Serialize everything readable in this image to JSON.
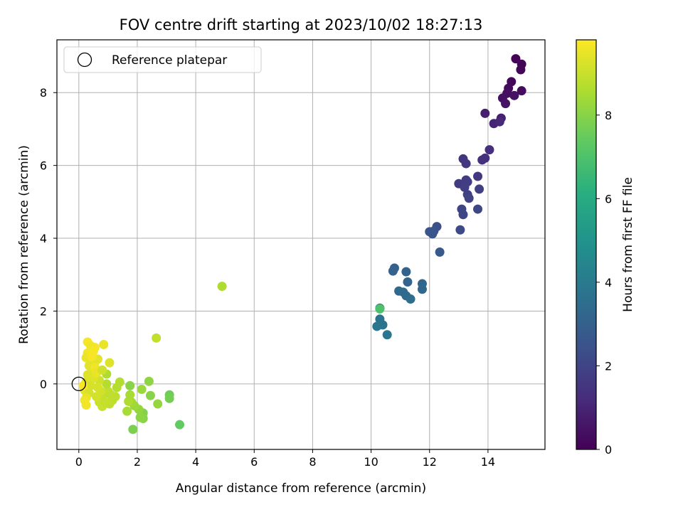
{
  "chart_data": {
    "type": "scatter",
    "title": "FOV centre drift starting at 2023/10/02 18:27:13",
    "xlabel": "Angular distance from reference (arcmin)",
    "ylabel": "Rotation from reference (arcmin)",
    "colorbar_label": "Hours from first FF file",
    "xlim": [
      -0.75,
      15.95
    ],
    "ylim": [
      -1.8,
      9.45
    ],
    "clim": [
      0,
      9.8
    ],
    "xticks": [
      "0",
      "2",
      "4",
      "6",
      "8",
      "10",
      "12",
      "14"
    ],
    "yticks": [
      "0",
      "2",
      "4",
      "6",
      "8"
    ],
    "cticks": [
      "0",
      "2",
      "4",
      "6",
      "8"
    ],
    "grid": true,
    "legend": {
      "position": "top-left",
      "entries": [
        "Reference platepar"
      ]
    },
    "reference_point": {
      "x": 0,
      "y": 0
    },
    "points": [
      {
        "x": 14.95,
        "y": 8.93,
        "h": 0.05
      },
      {
        "x": 15.15,
        "y": 8.78,
        "h": 0.1
      },
      {
        "x": 15.12,
        "y": 8.63,
        "h": 0.15
      },
      {
        "x": 14.8,
        "y": 8.3,
        "h": 0.2
      },
      {
        "x": 14.7,
        "y": 8.12,
        "h": 0.25
      },
      {
        "x": 15.15,
        "y": 8.05,
        "h": 0.3
      },
      {
        "x": 14.65,
        "y": 7.98,
        "h": 0.35
      },
      {
        "x": 14.5,
        "y": 7.85,
        "h": 0.4
      },
      {
        "x": 14.9,
        "y": 7.92,
        "h": 0.45
      },
      {
        "x": 14.6,
        "y": 7.7,
        "h": 0.5
      },
      {
        "x": 13.9,
        "y": 7.43,
        "h": 0.8
      },
      {
        "x": 14.45,
        "y": 7.3,
        "h": 0.9
      },
      {
        "x": 14.2,
        "y": 7.15,
        "h": 1.0
      },
      {
        "x": 14.4,
        "y": 7.2,
        "h": 1.1
      },
      {
        "x": 14.05,
        "y": 6.43,
        "h": 1.3
      },
      {
        "x": 13.9,
        "y": 6.2,
        "h": 1.35
      },
      {
        "x": 13.8,
        "y": 6.15,
        "h": 1.4
      },
      {
        "x": 13.15,
        "y": 6.18,
        "h": 1.5
      },
      {
        "x": 13.25,
        "y": 6.05,
        "h": 1.55
      },
      {
        "x": 13.65,
        "y": 5.7,
        "h": 1.6
      },
      {
        "x": 13.25,
        "y": 5.6,
        "h": 1.65
      },
      {
        "x": 13.0,
        "y": 5.5,
        "h": 1.7
      },
      {
        "x": 13.3,
        "y": 5.55,
        "h": 1.75
      },
      {
        "x": 13.2,
        "y": 5.4,
        "h": 1.8
      },
      {
        "x": 13.7,
        "y": 5.35,
        "h": 1.85
      },
      {
        "x": 13.3,
        "y": 5.2,
        "h": 1.9
      },
      {
        "x": 13.35,
        "y": 5.1,
        "h": 1.95
      },
      {
        "x": 13.1,
        "y": 4.8,
        "h": 2.0
      },
      {
        "x": 13.65,
        "y": 4.8,
        "h": 2.05
      },
      {
        "x": 13.15,
        "y": 4.65,
        "h": 2.1
      },
      {
        "x": 13.05,
        "y": 4.23,
        "h": 2.2
      },
      {
        "x": 12.25,
        "y": 4.32,
        "h": 2.4
      },
      {
        "x": 12.15,
        "y": 4.2,
        "h": 2.5
      },
      {
        "x": 12.0,
        "y": 4.18,
        "h": 2.55
      },
      {
        "x": 12.1,
        "y": 4.12,
        "h": 2.6
      },
      {
        "x": 12.35,
        "y": 3.62,
        "h": 2.7
      },
      {
        "x": 10.8,
        "y": 3.18,
        "h": 3.0
      },
      {
        "x": 10.75,
        "y": 3.1,
        "h": 3.05
      },
      {
        "x": 11.2,
        "y": 3.08,
        "h": 3.1
      },
      {
        "x": 11.25,
        "y": 2.8,
        "h": 3.15
      },
      {
        "x": 11.75,
        "y": 2.75,
        "h": 3.2
      },
      {
        "x": 11.75,
        "y": 2.6,
        "h": 3.25
      },
      {
        "x": 10.95,
        "y": 2.55,
        "h": 3.3
      },
      {
        "x": 11.1,
        "y": 2.52,
        "h": 3.35
      },
      {
        "x": 11.2,
        "y": 2.42,
        "h": 3.4
      },
      {
        "x": 11.35,
        "y": 2.33,
        "h": 3.45
      },
      {
        "x": 10.3,
        "y": 2.08,
        "h": 3.6
      },
      {
        "x": 10.3,
        "y": 1.78,
        "h": 3.7
      },
      {
        "x": 10.4,
        "y": 1.62,
        "h": 3.75
      },
      {
        "x": 10.2,
        "y": 1.58,
        "h": 3.8
      },
      {
        "x": 10.55,
        "y": 1.35,
        "h": 3.85
      },
      {
        "x": 10.3,
        "y": 2.06,
        "h": 7.0
      },
      {
        "x": 4.9,
        "y": 2.68,
        "h": 8.6
      },
      {
        "x": 2.65,
        "y": 1.26,
        "h": 8.9
      },
      {
        "x": 3.45,
        "y": -1.12,
        "h": 7.4
      },
      {
        "x": 3.1,
        "y": -0.3,
        "h": 7.6
      },
      {
        "x": 3.1,
        "y": -0.4,
        "h": 7.7
      },
      {
        "x": 1.85,
        "y": -1.25,
        "h": 7.8
      },
      {
        "x": 2.45,
        "y": -0.32,
        "h": 8.0
      },
      {
        "x": 2.4,
        "y": 0.07,
        "h": 8.1
      },
      {
        "x": 2.7,
        "y": -0.55,
        "h": 8.2
      },
      {
        "x": 2.15,
        "y": -0.15,
        "h": 8.3
      },
      {
        "x": 2.2,
        "y": -0.8,
        "h": 7.9
      },
      {
        "x": 2.2,
        "y": -0.95,
        "h": 8.0
      },
      {
        "x": 2.1,
        "y": -0.92,
        "h": 8.1
      },
      {
        "x": 2.05,
        "y": -0.7,
        "h": 8.2
      },
      {
        "x": 1.9,
        "y": -0.6,
        "h": 8.3
      },
      {
        "x": 1.8,
        "y": -0.5,
        "h": 8.4
      },
      {
        "x": 1.75,
        "y": -0.05,
        "h": 8.0
      },
      {
        "x": 1.65,
        "y": -0.75,
        "h": 8.5
      },
      {
        "x": 1.7,
        "y": -0.48,
        "h": 8.6
      },
      {
        "x": 1.75,
        "y": -0.3,
        "h": 8.5
      },
      {
        "x": 1.4,
        "y": 0.05,
        "h": 8.7
      },
      {
        "x": 1.3,
        "y": -0.1,
        "h": 8.7
      },
      {
        "x": 1.25,
        "y": -0.35,
        "h": 8.8
      },
      {
        "x": 1.15,
        "y": -0.45,
        "h": 8.8
      },
      {
        "x": 1.05,
        "y": -0.55,
        "h": 8.9
      },
      {
        "x": 1.0,
        "y": -0.2,
        "h": 8.9
      },
      {
        "x": 0.95,
        "y": 0.0,
        "h": 8.7
      },
      {
        "x": 0.95,
        "y": 0.27,
        "h": 8.6
      },
      {
        "x": 0.85,
        "y": -0.3,
        "h": 8.9
      },
      {
        "x": 0.8,
        "y": -0.62,
        "h": 9.0
      },
      {
        "x": 0.7,
        "y": -0.5,
        "h": 9.0
      },
      {
        "x": 0.75,
        "y": -0.2,
        "h": 9.1
      },
      {
        "x": 0.7,
        "y": 0.1,
        "h": 9.1
      },
      {
        "x": 0.65,
        "y": -0.1,
        "h": 9.2
      },
      {
        "x": 1.05,
        "y": 0.58,
        "h": 9.3
      },
      {
        "x": 0.85,
        "y": 1.08,
        "h": 9.5
      },
      {
        "x": 0.3,
        "y": 1.15,
        "h": 9.7
      },
      {
        "x": 0.55,
        "y": 1.0,
        "h": 9.7
      },
      {
        "x": 0.4,
        "y": 1.05,
        "h": 9.6
      },
      {
        "x": 0.3,
        "y": 0.85,
        "h": 9.6
      },
      {
        "x": 0.25,
        "y": 0.72,
        "h": 9.5
      },
      {
        "x": 0.4,
        "y": 0.65,
        "h": 9.5
      },
      {
        "x": 0.55,
        "y": 0.6,
        "h": 9.5
      },
      {
        "x": 0.65,
        "y": 0.68,
        "h": 9.4
      },
      {
        "x": 0.35,
        "y": 0.5,
        "h": 9.4
      },
      {
        "x": 0.45,
        "y": 0.35,
        "h": 9.4
      },
      {
        "x": 0.3,
        "y": 0.25,
        "h": 9.3
      },
      {
        "x": 0.5,
        "y": 0.15,
        "h": 9.3
      },
      {
        "x": 0.25,
        "y": 0.05,
        "h": 9.3
      },
      {
        "x": 0.4,
        "y": -0.05,
        "h": 9.2
      },
      {
        "x": 0.2,
        "y": -0.18,
        "h": 9.4
      },
      {
        "x": 0.35,
        "y": -0.25,
        "h": 9.2
      },
      {
        "x": 0.25,
        "y": -0.38,
        "h": 9.5
      },
      {
        "x": 0.2,
        "y": -0.45,
        "h": 9.6
      },
      {
        "x": 0.25,
        "y": -0.58,
        "h": 9.6
      },
      {
        "x": 0.15,
        "y": -0.05,
        "h": 9.7
      },
      {
        "x": 0.55,
        "y": 0.45,
        "h": 9.6
      },
      {
        "x": 0.6,
        "y": 0.3,
        "h": 9.5
      },
      {
        "x": 0.8,
        "y": 0.38,
        "h": 9.1
      },
      {
        "x": 0.9,
        "y": -0.5,
        "h": 8.95
      },
      {
        "x": 1.1,
        "y": -0.3,
        "h": 8.85
      },
      {
        "x": 0.6,
        "y": -0.35,
        "h": 9.15
      },
      {
        "x": 0.5,
        "y": 0.9,
        "h": 9.7
      },
      {
        "x": 0.45,
        "y": 0.75,
        "h": 9.7
      }
    ]
  }
}
